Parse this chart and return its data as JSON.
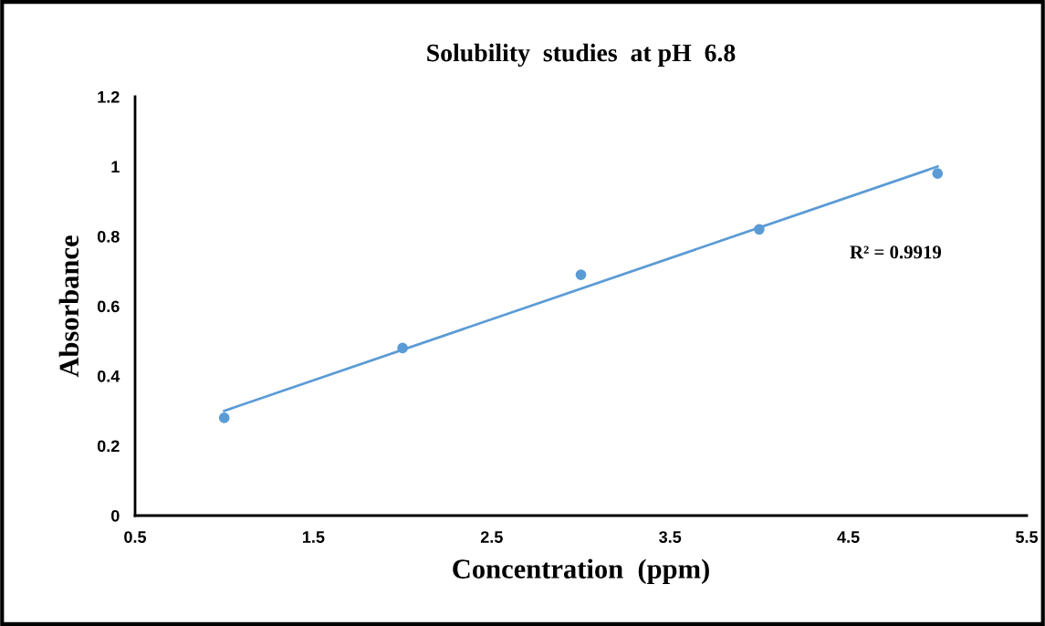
{
  "chart_data": {
    "type": "scatter",
    "title": "Solubility  studies  at pH  6.8",
    "xlabel": "Concentration  (ppm)",
    "ylabel": "Absorbance",
    "x": [
      1,
      2,
      3,
      4,
      5
    ],
    "series": [
      {
        "color": "#5b9bd5",
        "values": [
          0.28,
          0.48,
          0.69,
          0.82,
          0.98
        ],
        "marker": "circle"
      },
      {
        "type": "line",
        "color": "#5b9bd5",
        "x": [
          1,
          5
        ],
        "values": [
          0.3,
          1.0
        ],
        "marker": "none",
        "line_style": "solid"
      }
    ],
    "annotations": [
      "R² = 0.9919"
    ],
    "xlim": [
      0.5,
      5.5
    ],
    "xticks": [
      0.5,
      1.5,
      2.5,
      3.5,
      4.5,
      5.5
    ],
    "ylim": [
      0,
      1.2
    ],
    "yticks": [
      0,
      0.2,
      0.4,
      0.6,
      0.8,
      1,
      1.2
    ],
    "grid": false
  }
}
